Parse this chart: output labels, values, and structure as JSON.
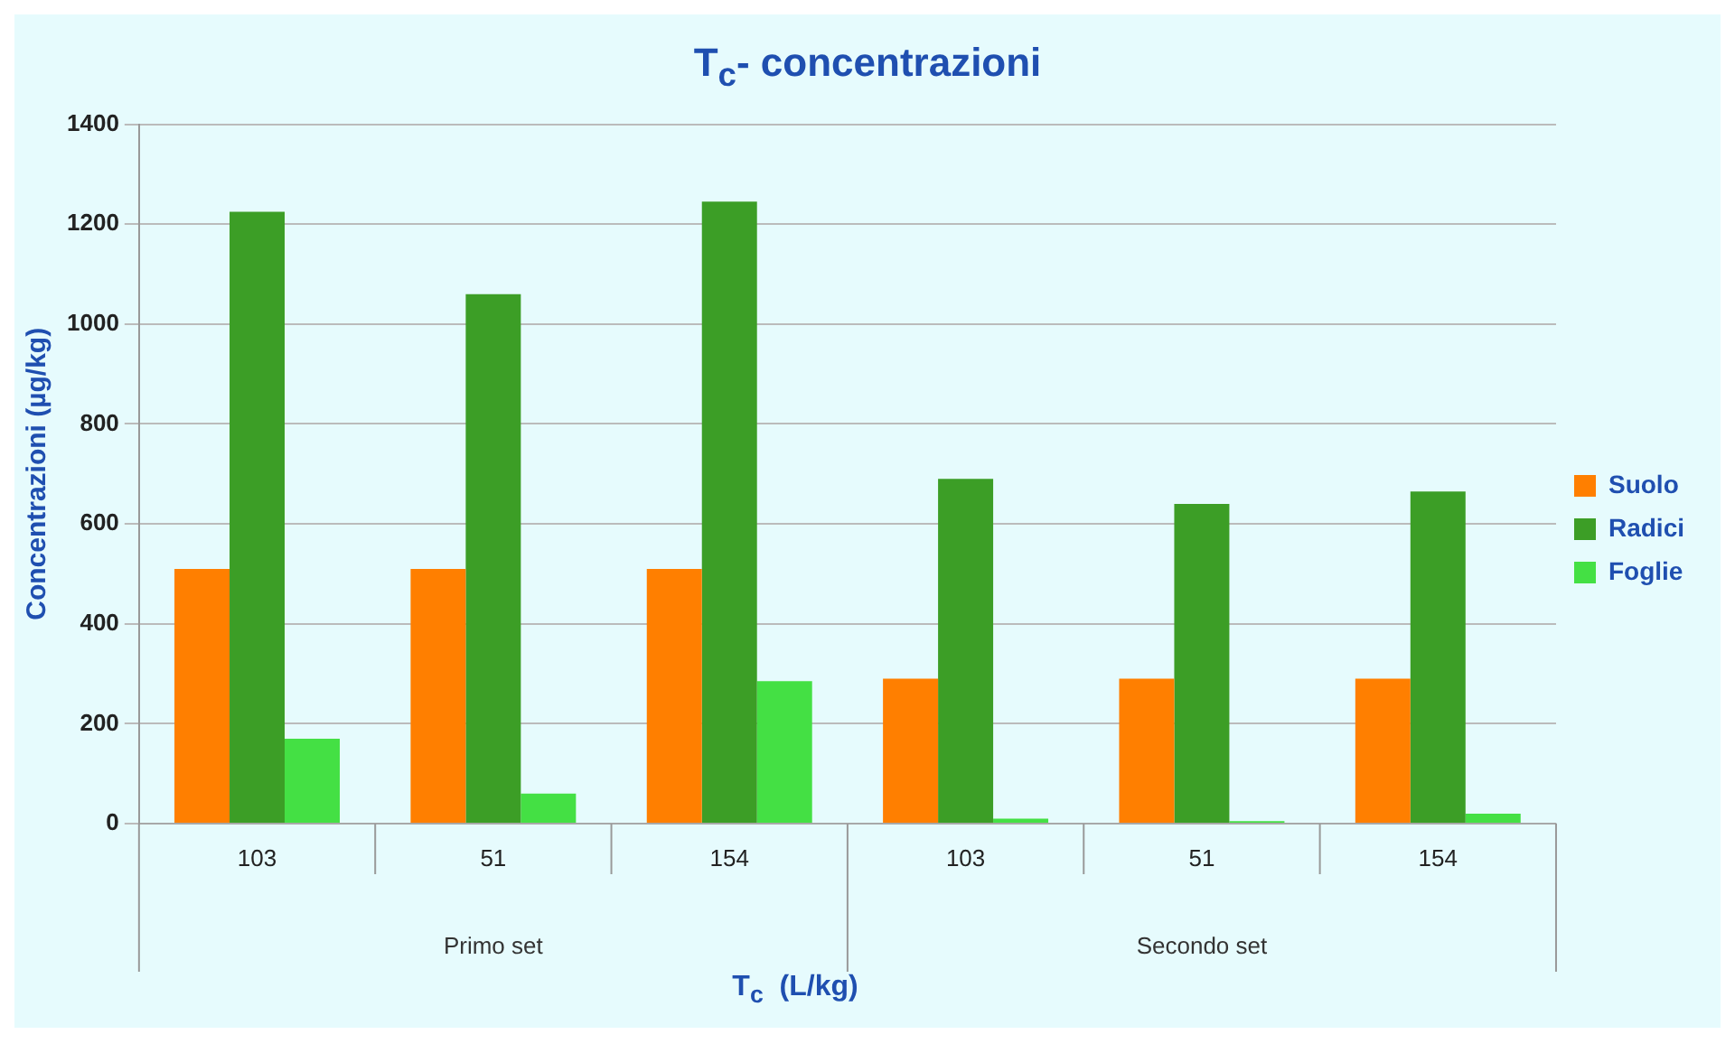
{
  "chart_data": {
    "type": "bar",
    "title": "T$_{c}$- concentrazioni",
    "xlabel": "T$_{c}$  (L/kg)",
    "ylabel": "Concentrazioni (µg/kg)",
    "categories": [
      "103",
      "51",
      "154",
      "103",
      "51",
      "154"
    ],
    "series": [
      {
        "name": "Suolo",
        "color": "#ff7f00",
        "values": [
          510,
          510,
          510,
          290,
          290,
          290
        ]
      },
      {
        "name": "Radici",
        "color": "#3c9e26",
        "values": [
          1225,
          1060,
          1245,
          690,
          640,
          665
        ]
      },
      {
        "name": "Foglie",
        "color": "#44e044",
        "values": [
          170,
          60,
          285,
          10,
          5,
          20
        ]
      }
    ],
    "annotations": [
      "Primo set",
      "Secondo set"
    ],
    "ylim": [
      0,
      1400
    ],
    "yticks": [
      0,
      200,
      400,
      600,
      800,
      1000,
      1200,
      1400
    ],
    "grid": "y",
    "legend": "right"
  }
}
